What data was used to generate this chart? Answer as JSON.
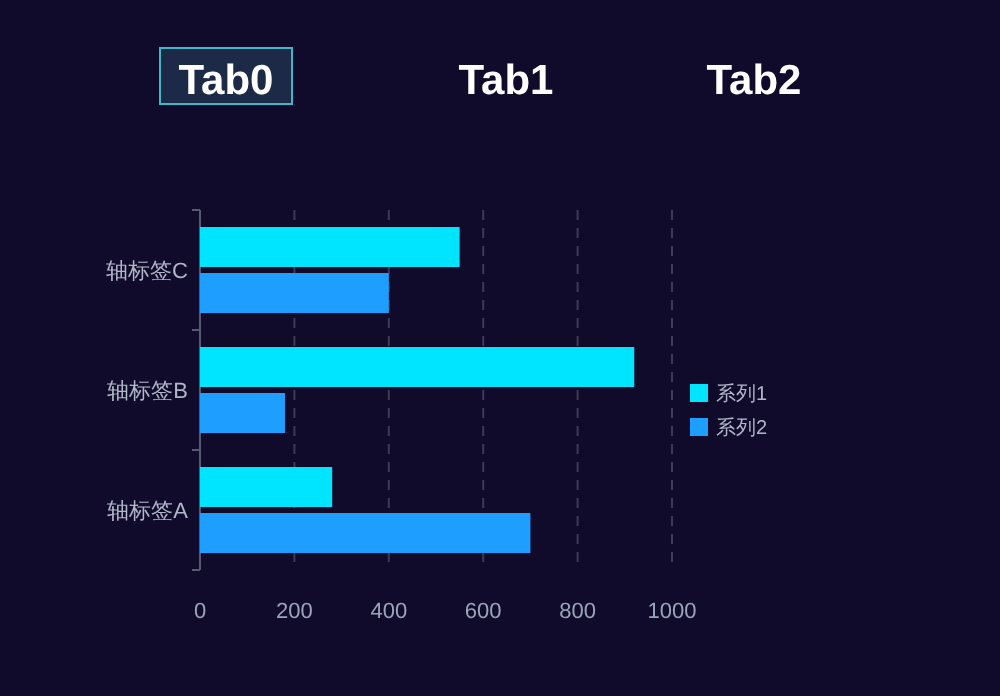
{
  "chart_data": {
    "type": "bar",
    "orientation": "horizontal",
    "categories": [
      "轴标签C",
      "轴标签B",
      "轴标签A"
    ],
    "series": [
      {
        "name": "系列1",
        "color": "#00e5ff",
        "values": [
          550,
          920,
          280
        ]
      },
      {
        "name": "系列2",
        "color": "#1e9fff",
        "values": [
          400,
          180,
          700
        ]
      }
    ],
    "xlim": [
      0,
      1000
    ],
    "xticks": [
      0,
      200,
      400,
      600,
      800,
      1000
    ],
    "grid": "x",
    "legend": "right",
    "annotations": [
      "Tab0",
      "Tab1",
      "Tab2"
    ]
  }
}
